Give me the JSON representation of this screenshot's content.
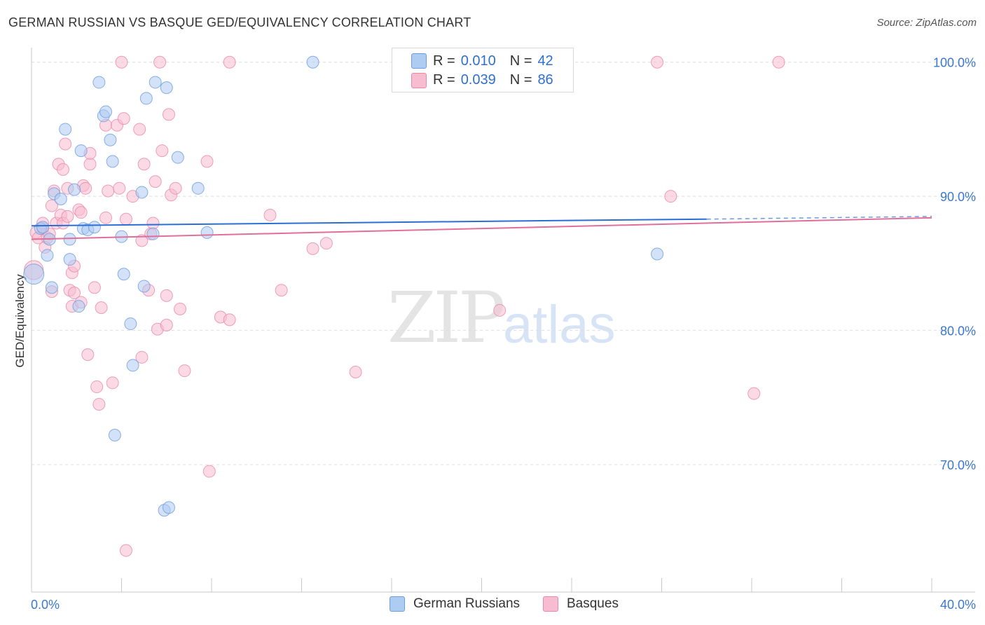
{
  "title": "GERMAN RUSSIAN VS BASQUE GED/EQUIVALENCY CORRELATION CHART",
  "source": "Source: ZipAtlas.com",
  "watermark": {
    "zip": "ZIP",
    "atlas": "atlas"
  },
  "legend": {
    "rows": [
      {
        "r_label": "R =",
        "r_value": "0.010",
        "n_label": "N =",
        "n_value": "42"
      },
      {
        "r_label": "R =",
        "r_value": "0.039",
        "n_label": "N =",
        "n_value": "86"
      }
    ]
  },
  "bottom_legend": [
    "German Russians",
    "Basques"
  ],
  "colors": {
    "blue_fill": "#aecbf2",
    "blue_stroke": "#6b9ee0",
    "blue_line": "#2b6fd6",
    "pink_fill": "#f7bcd0",
    "pink_stroke": "#ea88aa",
    "pink_line": "#e0709a",
    "axis_text": "#3a78d0",
    "grid": "#dddddd"
  },
  "chart_data": {
    "type": "scatter",
    "title": "GERMAN RUSSIAN VS BASQUE GED/EQUIVALENCY CORRELATION CHART",
    "xlabel": "",
    "ylabel": "GED/Equivalency",
    "xlim": [
      0,
      40
    ],
    "ylim": [
      60.5,
      101.5
    ],
    "x_tick_labels": [
      "0.0%",
      "40.0%"
    ],
    "y_ticks": [
      100,
      90,
      80,
      70
    ],
    "y_tick_labels": [
      "100.0%",
      "90.0%",
      "80.0%",
      "70.0%"
    ],
    "series": [
      {
        "name": "German Russians",
        "trend": {
          "x0": 0,
          "y0": 87.8,
          "x1": 30,
          "y1": 88.3,
          "dash_to_x": 40,
          "dash_to_y": 88.5
        },
        "points": [
          [
            0.1,
            84.2,
            1.7
          ],
          [
            0.4,
            87.6,
            1
          ],
          [
            0.5,
            87.7,
            1
          ],
          [
            0.7,
            85.6,
            1
          ],
          [
            0.8,
            86.8,
            1
          ],
          [
            0.9,
            83.2,
            1
          ],
          [
            1.0,
            90.2,
            1
          ],
          [
            1.3,
            89.8,
            1
          ],
          [
            1.5,
            95.0,
            1
          ],
          [
            1.7,
            86.8,
            1
          ],
          [
            1.7,
            85.3,
            1
          ],
          [
            1.9,
            90.5,
            1
          ],
          [
            2.1,
            81.8,
            1
          ],
          [
            2.2,
            93.4,
            1
          ],
          [
            2.3,
            87.6,
            1
          ],
          [
            2.5,
            87.5,
            1
          ],
          [
            2.8,
            87.7,
            1
          ],
          [
            3.0,
            98.5,
            1
          ],
          [
            3.2,
            96.0,
            1
          ],
          [
            3.3,
            96.3,
            1
          ],
          [
            3.5,
            94.2,
            1
          ],
          [
            3.6,
            92.6,
            1
          ],
          [
            3.7,
            72.2,
            1
          ],
          [
            4.0,
            87.0,
            1
          ],
          [
            4.1,
            84.2,
            1
          ],
          [
            4.4,
            80.5,
            1
          ],
          [
            4.5,
            77.4,
            1
          ],
          [
            4.9,
            90.3,
            1
          ],
          [
            5.0,
            83.3,
            1
          ],
          [
            5.1,
            97.3,
            1
          ],
          [
            5.4,
            87.2,
            1
          ],
          [
            5.5,
            98.5,
            1
          ],
          [
            5.9,
            66.6,
            1
          ],
          [
            6.0,
            98.1,
            1
          ],
          [
            6.1,
            66.8,
            1
          ],
          [
            6.5,
            92.9,
            1
          ],
          [
            7.4,
            90.6,
            1
          ],
          [
            7.8,
            87.3,
            1
          ],
          [
            12.5,
            100.0,
            1
          ],
          [
            27.8,
            85.7,
            1
          ]
        ]
      },
      {
        "name": "Basques",
        "trend": {
          "x0": 0,
          "y0": 86.8,
          "x1": 40,
          "y1": 88.4
        },
        "points": [
          [
            0.1,
            84.5,
            1.6
          ],
          [
            0.2,
            87.3,
            1
          ],
          [
            0.3,
            86.9,
            1
          ],
          [
            0.5,
            87.6,
            1
          ],
          [
            0.5,
            88.0,
            1
          ],
          [
            0.6,
            86.2,
            1
          ],
          [
            0.7,
            86.9,
            1
          ],
          [
            0.8,
            87.2,
            1
          ],
          [
            0.9,
            82.9,
            1
          ],
          [
            0.9,
            89.3,
            1
          ],
          [
            1.0,
            90.4,
            1
          ],
          [
            1.1,
            88.0,
            1
          ],
          [
            1.2,
            92.4,
            1
          ],
          [
            1.3,
            88.6,
            1
          ],
          [
            1.4,
            88.0,
            1
          ],
          [
            1.4,
            92.0,
            1
          ],
          [
            1.5,
            93.9,
            1
          ],
          [
            1.6,
            90.6,
            1
          ],
          [
            1.6,
            88.5,
            1
          ],
          [
            1.7,
            83.0,
            1
          ],
          [
            1.8,
            81.8,
            1
          ],
          [
            1.8,
            84.3,
            1
          ],
          [
            1.9,
            84.8,
            1
          ],
          [
            1.9,
            82.8,
            1
          ],
          [
            2.1,
            89.0,
            1
          ],
          [
            2.2,
            82.1,
            1
          ],
          [
            2.2,
            88.8,
            1
          ],
          [
            2.3,
            90.8,
            1
          ],
          [
            2.4,
            90.6,
            1
          ],
          [
            2.5,
            78.2,
            1
          ],
          [
            2.6,
            92.4,
            1
          ],
          [
            2.6,
            93.2,
            1
          ],
          [
            2.8,
            83.2,
            1
          ],
          [
            2.9,
            75.8,
            1
          ],
          [
            3.0,
            74.5,
            1
          ],
          [
            3.1,
            81.7,
            1
          ],
          [
            3.3,
            88.4,
            1
          ],
          [
            3.3,
            95.3,
            1
          ],
          [
            3.4,
            90.4,
            1
          ],
          [
            3.6,
            76.1,
            1
          ],
          [
            3.8,
            95.3,
            1
          ],
          [
            3.9,
            90.6,
            1
          ],
          [
            4.0,
            100.0,
            1
          ],
          [
            4.1,
            95.8,
            1
          ],
          [
            4.2,
            88.3,
            1
          ],
          [
            4.5,
            90.0,
            1
          ],
          [
            4.8,
            95.0,
            1
          ],
          [
            4.9,
            86.7,
            1
          ],
          [
            4.9,
            78.0,
            1
          ],
          [
            5.0,
            92.4,
            1
          ],
          [
            5.2,
            83.0,
            1
          ],
          [
            5.3,
            87.2,
            1
          ],
          [
            5.4,
            88.0,
            1
          ],
          [
            5.5,
            91.1,
            1
          ],
          [
            5.6,
            80.1,
            1
          ],
          [
            5.7,
            100.0,
            1
          ],
          [
            5.8,
            93.4,
            1
          ],
          [
            6.0,
            80.4,
            1
          ],
          [
            6.0,
            82.6,
            1
          ],
          [
            6.1,
            96.1,
            1
          ],
          [
            6.2,
            90.1,
            1
          ],
          [
            6.4,
            90.6,
            1
          ],
          [
            6.6,
            81.6,
            1
          ],
          [
            6.8,
            77.0,
            1
          ],
          [
            7.8,
            92.6,
            1
          ],
          [
            7.9,
            69.5,
            1
          ],
          [
            8.4,
            81.0,
            1
          ],
          [
            8.8,
            100.0,
            1
          ],
          [
            8.8,
            80.8,
            1
          ],
          [
            10.6,
            88.6,
            1
          ],
          [
            11.1,
            83.0,
            1
          ],
          [
            12.5,
            86.1,
            1
          ],
          [
            13.1,
            86.5,
            1
          ],
          [
            14.4,
            76.9,
            1
          ],
          [
            20.8,
            81.5,
            1
          ],
          [
            27.8,
            100.0,
            1
          ],
          [
            28.4,
            90.0,
            1
          ],
          [
            32.1,
            75.3,
            1
          ],
          [
            33.2,
            100.0,
            1
          ],
          [
            4.2,
            63.6,
            1
          ]
        ]
      }
    ]
  }
}
